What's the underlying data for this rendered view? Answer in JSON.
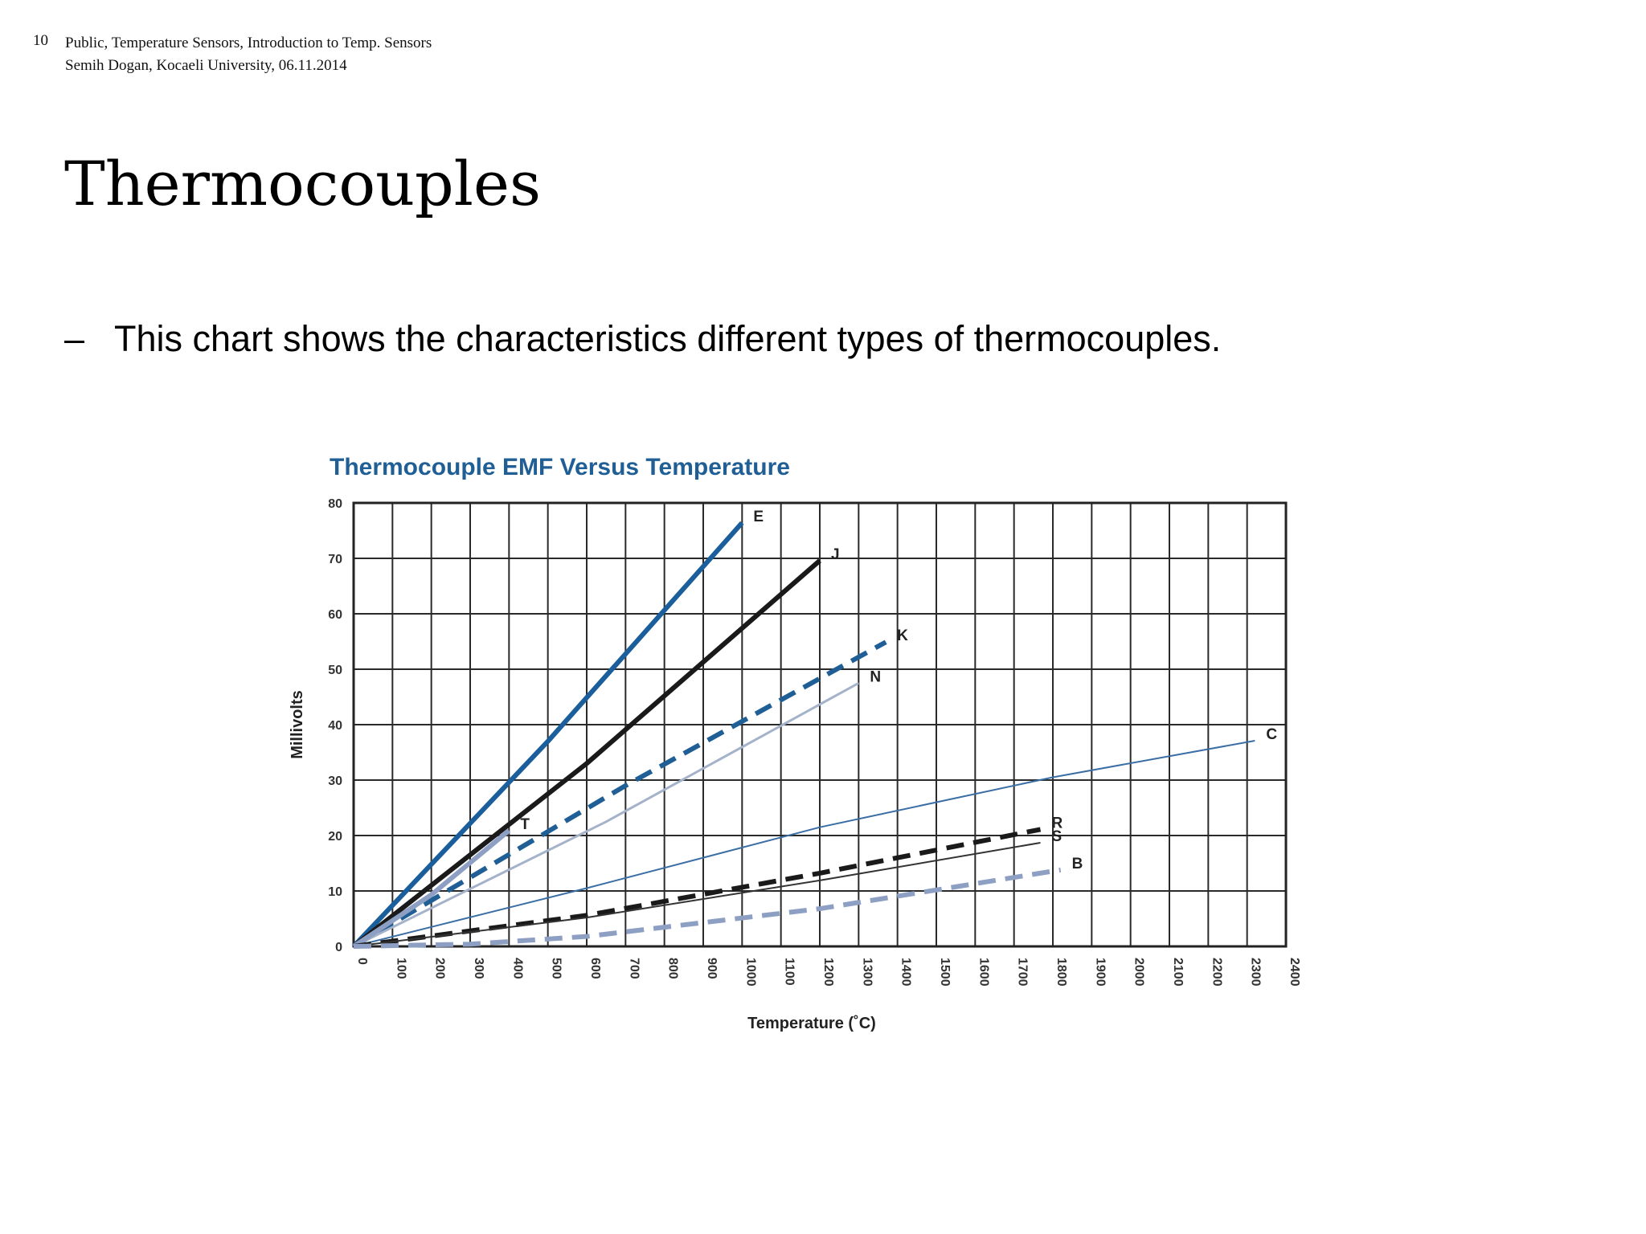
{
  "slide": {
    "page_number": "10",
    "meta_line1": "Public, Temperature Sensors, Introduction to Temp. Sensors",
    "meta_line2": "Semih Dogan, Kocaeli University, 06.11.2014",
    "title": "Thermocouples",
    "bullet_dash": "–",
    "bullet_text": "This chart shows the characteristics different types of thermocouples."
  },
  "chart_data": {
    "type": "line",
    "title": "Thermocouple EMF Versus Temperature",
    "xlabel": "Temperature (˚C)",
    "ylabel": "Millivolts",
    "xlim": [
      0,
      2400
    ],
    "ylim": [
      0,
      80
    ],
    "x_ticks": [
      0,
      100,
      200,
      300,
      400,
      500,
      600,
      700,
      800,
      900,
      1000,
      1100,
      1200,
      1300,
      1400,
      1500,
      1600,
      1700,
      1800,
      1900,
      2000,
      2100,
      2200,
      2300,
      2400
    ],
    "y_ticks": [
      0,
      10,
      20,
      30,
      40,
      50,
      60,
      70,
      80
    ],
    "grid": true,
    "legend": "inline labels at line ends",
    "series": [
      {
        "name": "E",
        "color": "#1a5e9b",
        "style": "solid",
        "weight": "heavy",
        "points": [
          [
            0,
            0
          ],
          [
            500,
            37
          ],
          [
            1000,
            76.4
          ]
        ]
      },
      {
        "name": "J",
        "color": "#1a1a1a",
        "style": "solid",
        "weight": "heavy",
        "points": [
          [
            0,
            0
          ],
          [
            600,
            33
          ],
          [
            1200,
            69.6
          ]
        ]
      },
      {
        "name": "K",
        "color": "#1f5f95",
        "style": "dashed",
        "weight": "heavy",
        "points": [
          [
            0,
            0
          ],
          [
            700,
            29
          ],
          [
            1370,
            54.9
          ]
        ]
      },
      {
        "name": "N",
        "color": "#a4b3c9",
        "style": "solid",
        "weight": "medium",
        "points": [
          [
            0,
            0
          ],
          [
            650,
            22.5
          ],
          [
            1300,
            47.5
          ]
        ]
      },
      {
        "name": "T",
        "color": "#8e9fc4",
        "style": "solid",
        "weight": "heavy",
        "points": [
          [
            0,
            0
          ],
          [
            200,
            9.3
          ],
          [
            400,
            20.9
          ]
        ]
      },
      {
        "name": "C",
        "color": "#3b6ea5",
        "style": "solid",
        "weight": "light",
        "points": [
          [
            0,
            0
          ],
          [
            600,
            10.5
          ],
          [
            1200,
            21.5
          ],
          [
            1800,
            30.5
          ],
          [
            2320,
            37.1
          ]
        ]
      },
      {
        "name": "R",
        "color": "#1a1a1a",
        "style": "dashed",
        "weight": "heavy",
        "points": [
          [
            0,
            0
          ],
          [
            600,
            5.6
          ],
          [
            1200,
            13.2
          ],
          [
            1768,
            21.1
          ]
        ]
      },
      {
        "name": "S",
        "color": "#333333",
        "style": "solid",
        "weight": "light",
        "points": [
          [
            0,
            0
          ],
          [
            600,
            5.2
          ],
          [
            1200,
            11.9
          ],
          [
            1768,
            18.7
          ]
        ]
      },
      {
        "name": "B",
        "color": "#8e9fc4",
        "style": "dashed",
        "weight": "heavy",
        "points": [
          [
            0,
            0
          ],
          [
            300,
            0.4
          ],
          [
            600,
            1.8
          ],
          [
            1200,
            6.8
          ],
          [
            1820,
            13.8
          ]
        ]
      }
    ]
  }
}
